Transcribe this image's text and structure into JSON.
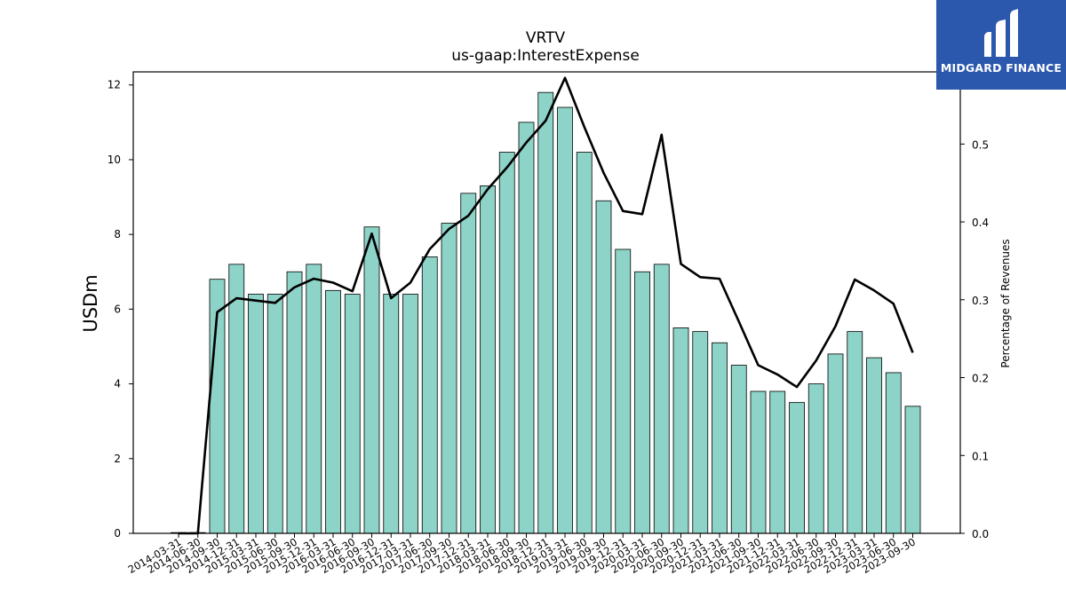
{
  "chart_data": {
    "type": "bar",
    "title": "VRTV",
    "subtitle": "us-gaap:InterestExpense",
    "ylabel": "USDm",
    "ylabel_right": "Percentage of Revenues",
    "ylim": [
      0,
      12.35
    ],
    "ylim_right": [
      0,
      0.5927
    ],
    "yticks": [
      "0",
      "2",
      "4",
      "6",
      "8",
      "10",
      "12"
    ],
    "yticks_right": [
      "0.0",
      "0.1",
      "0.2",
      "0.3",
      "0.4",
      "0.5"
    ],
    "grid": false,
    "bar_color": "#8dd3c7",
    "line_color": "#000000",
    "categories": [
      "2014-03-31",
      "2014-06-30",
      "2014-09-30",
      "2014-12-31",
      "2015-03-31",
      "2015-06-30",
      "2015-09-30",
      "2015-12-31",
      "2016-03-31",
      "2016-06-30",
      "2016-09-30",
      "2016-12-31",
      "2017-03-31",
      "2017-06-30",
      "2017-09-30",
      "2017-12-31",
      "2018-03-31",
      "2018-06-30",
      "2018-09-30",
      "2018-12-31",
      "2019-03-31",
      "2019-06-30",
      "2019-09-30",
      "2019-12-31",
      "2020-03-31",
      "2020-06-30",
      "2020-09-30",
      "2020-12-31",
      "2021-03-31",
      "2021-06-30",
      "2021-09-30",
      "2021-12-31",
      "2022-03-31",
      "2022-06-30",
      "2022-09-30",
      "2022-12-31",
      "2023-03-31",
      "2023-06-30",
      "2023-09-30"
    ],
    "series": [
      {
        "type": "bar",
        "axis": "left",
        "values": [
          0.02,
          0.02,
          6.8,
          7.2,
          6.4,
          6.4,
          7.0,
          7.2,
          6.5,
          6.4,
          8.2,
          6.4,
          6.4,
          7.4,
          8.3,
          9.1,
          9.3,
          10.2,
          11.0,
          11.8,
          11.4,
          10.2,
          8.9,
          7.6,
          7.0,
          7.2,
          5.5,
          5.4,
          5.1,
          4.5,
          3.8,
          3.8,
          3.5,
          4.0,
          4.8,
          5.4,
          4.7,
          4.3,
          3.4
        ]
      },
      {
        "type": "line",
        "axis": "right",
        "values": [
          0.0,
          0.0,
          0.284,
          0.302,
          0.299,
          0.296,
          0.316,
          0.327,
          0.322,
          0.311,
          0.385,
          0.302,
          0.322,
          0.365,
          0.391,
          0.408,
          0.442,
          0.47,
          0.502,
          0.53,
          0.585,
          0.522,
          0.463,
          0.414,
          0.41,
          0.512,
          0.346,
          0.329,
          0.327,
          0.272,
          0.216,
          0.204,
          0.188,
          0.222,
          0.266,
          0.326,
          0.312,
          0.295,
          0.232
        ]
      }
    ]
  },
  "logo": {
    "text": "MIDGARD FINANCE",
    "icon": "midgard-logo-icon",
    "color": "#2b57ad"
  }
}
